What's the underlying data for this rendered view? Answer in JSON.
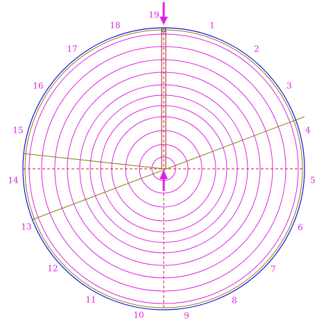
{
  "labels": [
    "1",
    "2",
    "3",
    "4",
    "5",
    "6",
    "7",
    "8",
    "9",
    "10",
    "11",
    "12",
    "13",
    "14",
    "15",
    "16",
    "17",
    "18",
    "19"
  ]
}
